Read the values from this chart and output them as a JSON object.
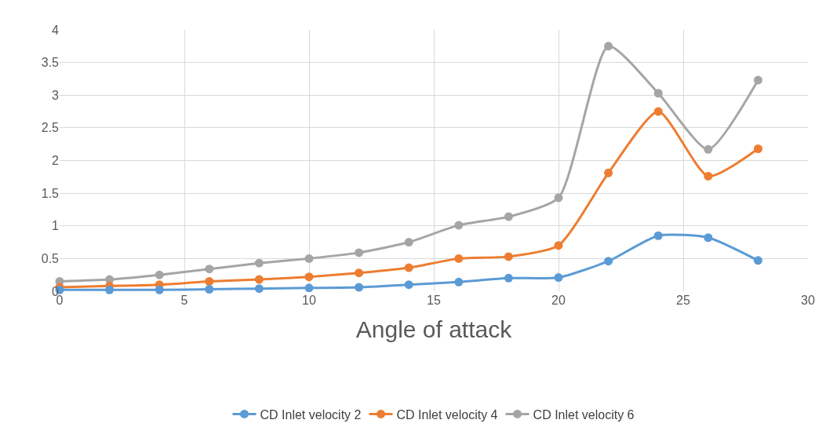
{
  "chart_data": {
    "type": "line",
    "xlabel": "Angle of attack",
    "x": [
      0,
      2,
      4,
      6,
      8,
      10,
      12,
      14,
      16,
      18,
      20,
      22,
      24,
      26,
      28
    ],
    "series": [
      {
        "name": "CD Inlet velocity 2",
        "color": "#5b9bd5",
        "values": [
          0.02,
          0.02,
          0.02,
          0.03,
          0.04,
          0.05,
          0.06,
          0.1,
          0.14,
          0.2,
          0.21,
          0.46,
          0.85,
          0.82,
          0.47
        ]
      },
      {
        "name": "CD Inlet velocity 4",
        "color": "#ed7d31",
        "values": [
          0.06,
          0.08,
          0.1,
          0.15,
          0.18,
          0.22,
          0.28,
          0.36,
          0.5,
          0.53,
          0.7,
          1.81,
          2.75,
          1.76,
          2.18
        ]
      },
      {
        "name": "CD Inlet velocity 6",
        "color": "#a5a5a5",
        "values": [
          0.15,
          0.18,
          0.25,
          0.34,
          0.43,
          0.5,
          0.59,
          0.75,
          1.01,
          1.14,
          1.43,
          3.75,
          3.03,
          2.17,
          3.23
        ]
      }
    ],
    "xlim": [
      0,
      30
    ],
    "xticks": [
      0,
      5,
      10,
      15,
      20,
      25,
      30
    ],
    "ylim": [
      0,
      4
    ],
    "yticks": [
      0,
      0.5,
      1,
      1.5,
      2,
      2.5,
      3,
      3.5,
      4
    ],
    "grid": true,
    "legend": "bottom",
    "marker": "circle",
    "line_style": "solid"
  }
}
